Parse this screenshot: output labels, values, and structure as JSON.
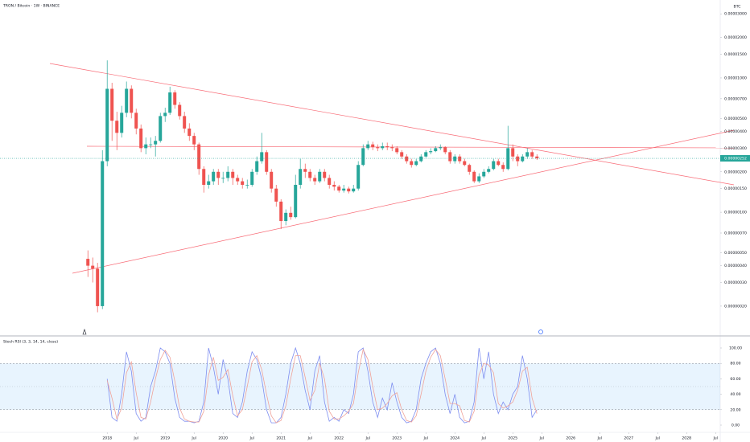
{
  "chart_data": [
    {
      "type": "candlestick",
      "title": "TRON / Bitcoin · 1W · BINANCE",
      "currency": "BTC",
      "log": true,
      "up_color": "#26a69a",
      "down_color": "#ef5350",
      "xlim": [
        2016.15,
        2028.58
      ],
      "ylim": [
        1.34e-07,
        3.55e-05
      ],
      "yticks": [
        {
          "value": 2e-07,
          "label": "0.00000020"
        },
        {
          "value": 3e-07,
          "label": "0.00000030"
        },
        {
          "value": 4e-07,
          "label": "0.00000040"
        },
        {
          "value": 5e-07,
          "label": "0.00000050"
        },
        {
          "value": 7e-07,
          "label": "0.00000070"
        },
        {
          "value": 1e-06,
          "label": "0.00000100"
        },
        {
          "value": 1.5e-06,
          "label": "0.00000150"
        },
        {
          "value": 2e-06,
          "label": "0.00000200"
        },
        {
          "value": 3e-06,
          "label": "0.00000300"
        },
        {
          "value": 4e-06,
          "label": "0.00000400"
        },
        {
          "value": 5e-06,
          "label": "0.00000500"
        },
        {
          "value": 7e-06,
          "label": "0.00000700"
        },
        {
          "value": 1e-05,
          "label": "0.00001000"
        },
        {
          "value": 1.5e-05,
          "label": "0.00001500"
        },
        {
          "value": 2e-05,
          "label": "0.00002000"
        },
        {
          "value": 3e-05,
          "label": "0.00003000"
        }
      ],
      "last_price": {
        "value": 2.52e-06,
        "label": "0.00000252"
      },
      "x": [
        2017.667,
        2017.75,
        2017.833,
        2017.917,
        2018,
        2018.083,
        2018.167,
        2018.25,
        2018.333,
        2018.417,
        2018.5,
        2018.583,
        2018.667,
        2018.75,
        2018.833,
        2018.917,
        2019,
        2019.083,
        2019.167,
        2019.25,
        2019.333,
        2019.417,
        2019.5,
        2019.583,
        2019.667,
        2019.75,
        2019.833,
        2019.917,
        2020,
        2020.083,
        2020.167,
        2020.25,
        2020.333,
        2020.417,
        2020.5,
        2020.583,
        2020.667,
        2020.75,
        2020.833,
        2020.917,
        2021,
        2021.083,
        2021.167,
        2021.25,
        2021.333,
        2021.417,
        2021.5,
        2021.583,
        2021.667,
        2021.75,
        2021.833,
        2021.917,
        2022,
        2022.083,
        2022.167,
        2022.25,
        2022.333,
        2022.417,
        2022.5,
        2022.583,
        2022.667,
        2022.75,
        2022.833,
        2022.917,
        2023,
        2023.083,
        2023.167,
        2023.25,
        2023.333,
        2023.417,
        2023.5,
        2023.583,
        2023.667,
        2023.75,
        2023.833,
        2023.917,
        2024,
        2024.083,
        2024.167,
        2024.25,
        2024.333,
        2024.417,
        2024.5,
        2024.583,
        2024.667,
        2024.75,
        2024.833,
        2024.917,
        2025,
        2025.083,
        2025.167,
        2025.25,
        2025.333,
        2025.417
      ],
      "open": [
        4.5e-07,
        4e-07,
        3.8e-07,
        2e-07,
        2.4e-06,
        8.3e-06,
        4.8e-06,
        3.9e-06,
        5.5e-06,
        8.3e-06,
        5.5e-06,
        4.2e-06,
        3e-06,
        3.2e-06,
        3.2e-06,
        3.4e-06,
        5.2e-06,
        5.5e-06,
        7.8e-06,
        6.3e-06,
        5.2e-06,
        4.2e-06,
        3.7e-06,
        3.2e-06,
        2.1e-06,
        1.6e-06,
        1.7e-06,
        2e-06,
        1.8e-06,
        1.8e-06,
        2e-06,
        1.8e-06,
        1.7e-06,
        1.6e-06,
        1.6e-06,
        2e-06,
        2.4e-06,
        2.8e-06,
        2e-06,
        1.5e-06,
        1.2e-06,
        8.6e-07,
        9.9e-07,
        9.2e-07,
        1.6e-06,
        2.1e-06,
        2e-06,
        1.8e-06,
        1.7e-06,
        2e-06,
        1.8e-06,
        1.6e-06,
        1.55e-06,
        1.45e-06,
        1.5e-06,
        1.43e-06,
        1.5e-06,
        2.25e-06,
        3e-06,
        3.2e-06,
        3.05e-06,
        3e-06,
        3.1e-06,
        3.05e-06,
        3e-06,
        2.8e-06,
        2.6e-06,
        2.4e-06,
        2.25e-06,
        2.4e-06,
        2.6e-06,
        2.8e-06,
        2.85e-06,
        3e-06,
        3.05e-06,
        2.8e-06,
        2.4e-06,
        2.6e-06,
        2.4e-06,
        2.25e-06,
        2e-06,
        1.7e-06,
        1.85e-06,
        2e-06,
        2.1e-06,
        2.4e-06,
        2.25e-06,
        2.1e-06,
        3e-06,
        2.6e-06,
        2.4e-06,
        2.6e-06,
        2.8e-06,
        2.6e-06
      ],
      "high": [
        5.2e-07,
        4.6e-07,
        4.2e-07,
        2.9e-06,
        1.35e-05,
        9.2e-06,
        5.6e-06,
        6.2e-06,
        9.4e-06,
        8.8e-06,
        5.9e-06,
        4.5e-06,
        3.6e-06,
        3.6e-06,
        3.7e-06,
        5.5e-06,
        6e-06,
        8.6e-06,
        8.1e-06,
        6.6e-06,
        5.6e-06,
        4.6e-06,
        3.9e-06,
        3.3e-06,
        2.2e-06,
        1.9e-06,
        2.1e-06,
        2.1e-06,
        2e-06,
        2.2e-06,
        2.1e-06,
        1.9e-06,
        1.8e-06,
        1.75e-06,
        2.1e-06,
        2.6e-06,
        3.9e-06,
        2.9e-06,
        2.1e-06,
        1.6e-06,
        1.25e-06,
        1.05e-06,
        1.1e-06,
        1.9e-06,
        2.5e-06,
        2.3e-06,
        2.1e-06,
        1.9e-06,
        2.1e-06,
        2.1e-06,
        1.9e-06,
        1.7e-06,
        1.6e-06,
        1.6e-06,
        1.55e-06,
        1.6e-06,
        2.4e-06,
        3.2e-06,
        3.4e-06,
        3.35e-06,
        3.2e-06,
        3.3e-06,
        3.3e-06,
        3.2e-06,
        3.1e-06,
        2.9e-06,
        2.7e-06,
        2.5e-06,
        2.5e-06,
        2.7e-06,
        2.9e-06,
        3e-06,
        3.1e-06,
        3.2e-06,
        3.1e-06,
        2.9e-06,
        2.7e-06,
        2.7e-06,
        2.5e-06,
        2.3e-06,
        2.05e-06,
        1.95e-06,
        2.1e-06,
        2.2e-06,
        2.5e-06,
        2.5e-06,
        2.35e-06,
        4.4e-06,
        3.2e-06,
        2.7e-06,
        2.7e-06,
        3e-06,
        2.9e-06,
        2.7e-06
      ],
      "low": [
        3.3e-07,
        3e-07,
        1.8e-07,
        1.9e-07,
        2.2e-06,
        3.4e-06,
        2.9e-06,
        3.6e-06,
        5.1e-06,
        5e-06,
        3.8e-06,
        2.8e-06,
        2.7e-06,
        3e-06,
        2.6e-06,
        3.3e-06,
        4.7e-06,
        5.3e-06,
        5.9e-06,
        4.9e-06,
        3.9e-06,
        3.4e-06,
        2.9e-06,
        1.9e-06,
        1.4e-06,
        1.5e-06,
        1.6e-06,
        1.6e-06,
        1.65e-06,
        1.7e-06,
        1.6e-06,
        1.6e-06,
        1.5e-06,
        1.5e-06,
        1.55e-06,
        1.9e-06,
        2.3e-06,
        1.9e-06,
        1.4e-06,
        1.1e-06,
        7.5e-07,
        8e-07,
        8.8e-07,
        9e-07,
        1.5e-06,
        1.8e-06,
        1.7e-06,
        1.6e-06,
        1.65e-06,
        1.7e-06,
        1.5e-06,
        1.45e-06,
        1.4e-06,
        1.4e-06,
        1.38e-06,
        1.4e-06,
        1.45e-06,
        2.2e-06,
        2.9e-06,
        2.9e-06,
        2.85e-06,
        2.9e-06,
        2.9e-06,
        2.85e-06,
        2.7e-06,
        2.5e-06,
        2.3e-06,
        2.15e-06,
        2.2e-06,
        2.35e-06,
        2.55e-06,
        2.7e-06,
        2.8e-06,
        2.9e-06,
        2.7e-06,
        2.3e-06,
        2.3e-06,
        2.3e-06,
        2.2e-06,
        1.9e-06,
        1.65e-06,
        1.65e-06,
        1.8e-06,
        1.95e-06,
        2.05e-06,
        2.2e-06,
        2e-06,
        2.05e-06,
        2.4e-06,
        2.2e-06,
        2.35e-06,
        2.5e-06,
        2.5e-06,
        2.45e-06
      ],
      "close": [
        4e-07,
        3.8e-07,
        2e-07,
        2.4e-06,
        8.3e-06,
        4.8e-06,
        3.9e-06,
        5.5e-06,
        8.3e-06,
        5.5e-06,
        4.2e-06,
        3e-06,
        3.2e-06,
        3.2e-06,
        3.4e-06,
        5.2e-06,
        5.5e-06,
        7.8e-06,
        6.3e-06,
        5.2e-06,
        4.2e-06,
        3.7e-06,
        3.2e-06,
        2.1e-06,
        1.6e-06,
        1.7e-06,
        2e-06,
        1.8e-06,
        1.8e-06,
        2e-06,
        1.8e-06,
        1.7e-06,
        1.6e-06,
        1.6e-06,
        2e-06,
        2.4e-06,
        2.8e-06,
        2e-06,
        1.5e-06,
        1.2e-06,
        8.6e-07,
        9.9e-07,
        9.2e-07,
        1.6e-06,
        2.1e-06,
        2e-06,
        1.8e-06,
        1.7e-06,
        2e-06,
        1.8e-06,
        1.6e-06,
        1.55e-06,
        1.45e-06,
        1.5e-06,
        1.43e-06,
        1.5e-06,
        2.25e-06,
        3e-06,
        3.2e-06,
        3.05e-06,
        3e-06,
        3.1e-06,
        3.05e-06,
        3e-06,
        2.8e-06,
        2.6e-06,
        2.4e-06,
        2.25e-06,
        2.4e-06,
        2.6e-06,
        2.8e-06,
        2.85e-06,
        3e-06,
        3.05e-06,
        2.8e-06,
        2.4e-06,
        2.6e-06,
        2.4e-06,
        2.25e-06,
        2e-06,
        1.7e-06,
        1.85e-06,
        2e-06,
        2.1e-06,
        2.4e-06,
        2.25e-06,
        2.1e-06,
        3e-06,
        2.6e-06,
        2.4e-06,
        2.6e-06,
        2.8e-06,
        2.6e-06,
        2.52e-06
      ]
    },
    {
      "type": "line",
      "title": "Stoch RSI (3, 3, 14, 14, close)",
      "xlim": [
        2016.15,
        2028.58
      ],
      "ylim": [
        0,
        100
      ],
      "yticks": [
        {
          "value": 0,
          "label": "0.00"
        },
        {
          "value": 20,
          "label": "20.00"
        },
        {
          "value": 40,
          "label": "40.00"
        },
        {
          "value": 60,
          "label": "60.00"
        },
        {
          "value": 80,
          "label": "80.00"
        },
        {
          "value": 100,
          "label": "100.00"
        }
      ],
      "band": [
        20,
        80
      ],
      "midline": 50,
      "band_color": "#2196f3",
      "xticks": [
        2018,
        {
          "value": 2018.5,
          "label": "Jul"
        },
        2019,
        {
          "value": 2019.5,
          "label": "Jul"
        },
        2020,
        {
          "value": 2020.5,
          "label": "Jul"
        },
        2021,
        {
          "value": 2021.5,
          "label": "Jul"
        },
        2022,
        {
          "value": 2022.5,
          "label": "Jul"
        },
        2023,
        {
          "value": 2023.5,
          "label": "Jul"
        },
        2024,
        {
          "value": 2024.5,
          "label": "Jul"
        },
        2025,
        {
          "value": 2025.5,
          "label": "Jul"
        },
        2026,
        {
          "value": 2026.5,
          "label": "Jul"
        },
        2027,
        {
          "value": 2027.5,
          "label": "Jul"
        },
        2028,
        {
          "value": 2028.5,
          "label": "Jul"
        }
      ],
      "x": [
        2017.667,
        2017.75,
        2017.833,
        2017.917,
        2018,
        2018.083,
        2018.167,
        2018.25,
        2018.333,
        2018.417,
        2018.5,
        2018.583,
        2018.667,
        2018.75,
        2018.833,
        2018.917,
        2019,
        2019.083,
        2019.167,
        2019.25,
        2019.333,
        2019.417,
        2019.5,
        2019.583,
        2019.667,
        2019.75,
        2019.833,
        2019.917,
        2020,
        2020.083,
        2020.167,
        2020.25,
        2020.333,
        2020.417,
        2020.5,
        2020.583,
        2020.667,
        2020.75,
        2020.833,
        2020.917,
        2021,
        2021.083,
        2021.167,
        2021.25,
        2021.333,
        2021.417,
        2021.5,
        2021.583,
        2021.667,
        2021.75,
        2021.833,
        2021.917,
        2022,
        2022.083,
        2022.167,
        2022.25,
        2022.333,
        2022.417,
        2022.5,
        2022.583,
        2022.667,
        2022.75,
        2022.833,
        2022.917,
        2023,
        2023.083,
        2023.167,
        2023.25,
        2023.333,
        2023.417,
        2023.5,
        2023.583,
        2023.667,
        2023.75,
        2023.833,
        2023.917,
        2024,
        2024.083,
        2024.167,
        2024.25,
        2024.333,
        2024.417,
        2024.5,
        2024.583,
        2024.667,
        2024.75,
        2024.833,
        2024.917,
        2025,
        2025.083,
        2025.167,
        2025.25,
        2025.333,
        2025.417
      ],
      "series": [
        {
          "color": "#7e8ef0",
          "values": [
            null,
            null,
            null,
            null,
            60,
            10,
            5,
            40,
            95,
            70,
            15,
            5,
            10,
            50,
            70,
            100,
            95,
            80,
            35,
            10,
            5,
            5,
            3,
            5,
            30,
            100,
            75,
            40,
            85,
            60,
            15,
            10,
            30,
            70,
            95,
            85,
            60,
            20,
            3,
            3,
            10,
            40,
            80,
            100,
            80,
            45,
            20,
            70,
            90,
            30,
            5,
            10,
            5,
            20,
            15,
            40,
            95,
            100,
            70,
            30,
            10,
            35,
            20,
            55,
            30,
            10,
            3,
            5,
            20,
            60,
            80,
            95,
            100,
            80,
            40,
            15,
            40,
            10,
            3,
            5,
            30,
            100,
            60,
            95,
            40,
            15,
            30,
            20,
            40,
            50,
            90,
            60,
            10,
            20
          ]
        },
        {
          "color": "#f0a39a",
          "values": [
            null,
            null,
            null,
            null,
            58,
            35,
            8,
            22,
            68,
            82,
            42,
            10,
            8,
            30,
            60,
            85,
            97,
            88,
            57,
            22,
            8,
            5,
            4,
            4,
            18,
            65,
            88,
            58,
            62,
            72,
            38,
            12,
            20,
            50,
            82,
            90,
            72,
            40,
            12,
            3,
            6,
            25,
            60,
            90,
            90,
            62,
            32,
            45,
            80,
            60,
            18,
            8,
            8,
            12,
            18,
            28,
            68,
            98,
            85,
            50,
            20,
            22,
            28,
            38,
            42,
            20,
            6,
            4,
            12,
            40,
            70,
            88,
            98,
            90,
            60,
            28,
            28,
            25,
            6,
            4,
            18,
            65,
            80,
            78,
            68,
            28,
            22,
            25,
            30,
            45,
            70,
            75,
            35,
            15
          ]
        }
      ]
    }
  ]
}
